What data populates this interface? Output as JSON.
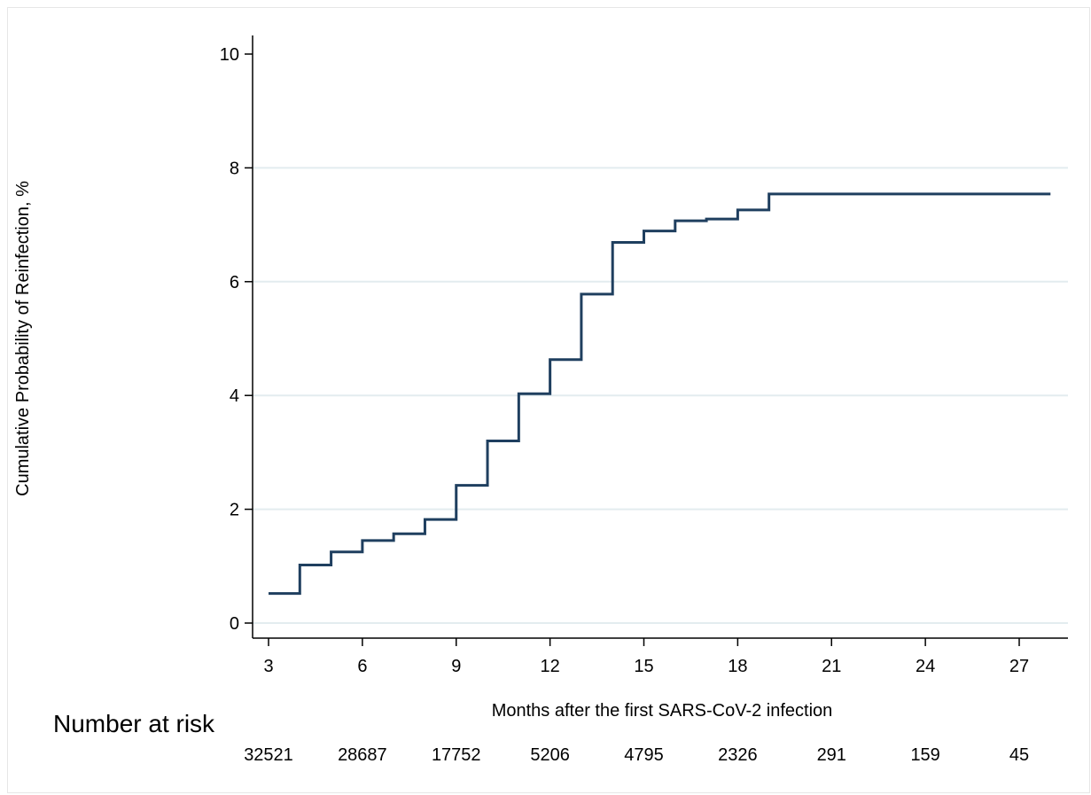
{
  "chart_data": {
    "type": "line",
    "step": true,
    "xlabel": "Months after the first SARS-CoV-2  infection",
    "ylabel": "Cumulative Probability of Reinfection,  %",
    "xlim": [
      3,
      28
    ],
    "ylim": [
      0,
      10
    ],
    "xticks": [
      3,
      6,
      9,
      12,
      15,
      18,
      21,
      24,
      27
    ],
    "yticks": [
      0,
      2,
      4,
      6,
      8,
      10
    ],
    "grid": "horizontal",
    "line_color": "#1f3f5f",
    "series": [
      {
        "x": [
          3,
          4,
          5,
          6,
          7,
          8,
          9,
          10,
          11,
          12,
          13,
          14,
          15,
          16,
          17,
          18,
          19,
          28
        ],
        "y": [
          0.52,
          1.02,
          1.25,
          1.45,
          1.57,
          1.82,
          2.42,
          3.2,
          4.03,
          4.63,
          5.78,
          6.69,
          6.89,
          7.07,
          7.1,
          7.26,
          7.54,
          7.54
        ]
      }
    ],
    "number_at_risk": {
      "label": "Number at risk",
      "x": [
        3,
        6,
        9,
        12,
        15,
        18,
        21,
        24,
        27
      ],
      "values": [
        "32521",
        "28687",
        "17752",
        "5206",
        "4795",
        "2326",
        "291",
        "159",
        "45"
      ]
    }
  }
}
